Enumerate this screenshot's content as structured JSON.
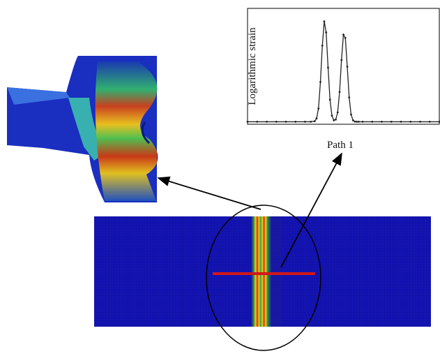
{
  "chart_data": {
    "type": "line",
    "x_label": "Path 1",
    "y_label": "Logarithmic strain",
    "x": [
      0,
      5,
      10,
      15,
      20,
      25,
      30,
      33,
      35,
      36,
      37,
      38,
      39,
      40,
      41,
      42,
      43,
      44,
      45,
      46,
      47,
      48,
      49,
      50,
      51,
      52,
      53,
      54,
      55,
      56,
      57,
      58,
      60,
      65,
      70,
      75,
      80,
      85,
      90,
      95,
      100
    ],
    "values": [
      0.01,
      0.01,
      0.01,
      0.01,
      0.01,
      0.01,
      0.01,
      0.01,
      0.015,
      0.04,
      0.13,
      0.37,
      0.7,
      0.92,
      0.82,
      0.5,
      0.21,
      0.065,
      0.023,
      0.03,
      0.095,
      0.28,
      0.57,
      0.8,
      0.77,
      0.51,
      0.23,
      0.075,
      0.023,
      0.012,
      0.01,
      0.01,
      0.01,
      0.01,
      0.01,
      0.01,
      0.01,
      0.01,
      0.01,
      0.01,
      0.01
    ],
    "color": "#222222",
    "xlim": [
      0,
      100
    ],
    "ylim": [
      0,
      1
    ]
  }
}
